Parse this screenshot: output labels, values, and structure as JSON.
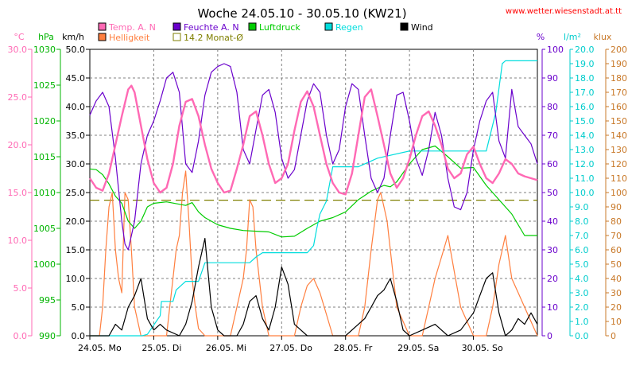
{
  "chart_data": {
    "type": "line",
    "title": "Woche 24.05.10 - 30.05.10 (KW21)",
    "source": "www.wetter.wiesenstadt.at.tt",
    "x_labels": [
      "24.05. Mo",
      "25.05. Di",
      "26.05. Mi",
      "27.05. Do",
      "28.05. Fr",
      "29.05. Sa",
      "30.05. So"
    ],
    "x_range_days": [
      0,
      7
    ],
    "axes": [
      {
        "unit": "°C",
        "color": "#ff69b4",
        "range": [
          0,
          30
        ],
        "ticks": [
          "0.0",
          "5.0",
          "10.0",
          "15.0",
          "20.0",
          "25.0",
          "30.0"
        ]
      },
      {
        "unit": "hPa",
        "color": "#00b400",
        "range": [
          990,
          1030
        ],
        "ticks": [
          "990",
          "995",
          "1000",
          "1005",
          "1010",
          "1015",
          "1020",
          "1025",
          "1030"
        ]
      },
      {
        "unit": "km/h",
        "color": "#000000",
        "range": [
          0,
          50
        ],
        "ticks": [
          "0.0",
          "5.0",
          "10.0",
          "15.0",
          "20.0",
          "25.0",
          "30.0",
          "35.0",
          "40.0",
          "45.0",
          "50.0"
        ]
      },
      {
        "unit": "%",
        "color": "#6a00cc",
        "range": [
          0,
          100
        ],
        "ticks": [
          "0",
          "10",
          "20",
          "30",
          "40",
          "50",
          "60",
          "70",
          "80",
          "90",
          "100"
        ]
      },
      {
        "unit": "l/m²",
        "color": "#00cccc",
        "range": [
          0,
          20
        ],
        "ticks": [
          "0.0",
          "1.0",
          "2.0",
          "3.0",
          "4.0",
          "5.0",
          "6.0",
          "7.0",
          "8.0",
          "9.0",
          "10.0",
          "11.0",
          "12.0",
          "13.0",
          "14.0",
          "15.0",
          "16.0",
          "17.0",
          "18.0",
          "19.0",
          "20.0"
        ]
      },
      {
        "unit": "klux",
        "color": "#c87828",
        "range": [
          0,
          200
        ],
        "ticks": [
          "0",
          "10",
          "20",
          "30",
          "40",
          "50",
          "60",
          "70",
          "80",
          "90",
          "100",
          "110",
          "120",
          "130",
          "140",
          "150",
          "160",
          "170",
          "180",
          "190",
          "200"
        ]
      }
    ],
    "legend": [
      {
        "label": "Temp. A. N",
        "color": "#ff69b4"
      },
      {
        "label": "Helligkeit",
        "color": "#ff7f3f"
      },
      {
        "label": "Feuchte A. N",
        "color": "#6a00cc"
      },
      {
        "label": "14.2 Monat-Ø",
        "color": "#7f7f00"
      },
      {
        "label": "Luftdruck",
        "color": "#00cc00"
      },
      {
        "label": "Regen",
        "color": "#00dddd"
      },
      {
        "label": "Wind",
        "color": "#000000"
      }
    ],
    "reference_line": {
      "value": 14.2,
      "axis": "°C"
    },
    "series": [
      {
        "name": "Temp. A. N",
        "axis": 0,
        "color": "#ff69b4",
        "x": [
          0,
          0.1,
          0.2,
          0.3,
          0.4,
          0.5,
          0.6,
          0.65,
          0.7,
          0.8,
          0.9,
          1.0,
          1.1,
          1.2,
          1.3,
          1.4,
          1.5,
          1.6,
          1.7,
          1.8,
          1.9,
          2.0,
          2.1,
          2.2,
          2.3,
          2.4,
          2.5,
          2.6,
          2.7,
          2.8,
          2.9,
          3.0,
          3.1,
          3.2,
          3.3,
          3.4,
          3.5,
          3.6,
          3.7,
          3.8,
          3.9,
          4.0,
          4.1,
          4.2,
          4.3,
          4.4,
          4.5,
          4.6,
          4.7,
          4.8,
          4.9,
          5.0,
          5.1,
          5.2,
          5.3,
          5.4,
          5.5,
          5.6,
          5.7,
          5.8,
          5.9,
          6.0,
          6.1,
          6.2,
          6.3,
          6.4,
          6.5,
          6.6,
          6.7,
          6.8,
          6.9,
          7.0
        ],
        "y": [
          16.5,
          15.5,
          15.2,
          17,
          20,
          23,
          25.8,
          26.2,
          25.5,
          22,
          18.5,
          16,
          15,
          15.5,
          18,
          22,
          24.5,
          24.8,
          23,
          20,
          17.5,
          16,
          15,
          15.2,
          17.5,
          20,
          23,
          23.5,
          21,
          18,
          16,
          16.5,
          18,
          21.5,
          24.5,
          25.6,
          24,
          21,
          18,
          16,
          15,
          14.8,
          17,
          21,
          25,
          25.8,
          23,
          20,
          17,
          15.5,
          16.5,
          18.5,
          21,
          23,
          23.5,
          22,
          20,
          17.5,
          16.5,
          17,
          19,
          19.8,
          18,
          16.5,
          16,
          17,
          18.5,
          18,
          17,
          16.7,
          16.5,
          16.3
        ]
      },
      {
        "name": "Feuchte A. N",
        "axis": 3,
        "color": "#6a00cc",
        "x": [
          0,
          0.1,
          0.2,
          0.3,
          0.4,
          0.5,
          0.55,
          0.6,
          0.7,
          0.8,
          0.9,
          1.0,
          1.1,
          1.2,
          1.3,
          1.4,
          1.5,
          1.6,
          1.7,
          1.8,
          1.9,
          2.0,
          2.1,
          2.2,
          2.3,
          2.4,
          2.5,
          2.6,
          2.7,
          2.8,
          2.9,
          3.0,
          3.1,
          3.2,
          3.3,
          3.4,
          3.5,
          3.6,
          3.7,
          3.8,
          3.9,
          4.0,
          4.1,
          4.2,
          4.3,
          4.4,
          4.5,
          4.6,
          4.7,
          4.8,
          4.9,
          5.0,
          5.1,
          5.2,
          5.3,
          5.4,
          5.5,
          5.6,
          5.7,
          5.8,
          5.9,
          6.0,
          6.1,
          6.2,
          6.3,
          6.4,
          6.5,
          6.6,
          6.7,
          6.8,
          6.9,
          7.0
        ],
        "y": [
          77,
          82,
          85,
          80,
          62,
          40,
          32,
          30,
          40,
          60,
          70,
          75,
          82,
          90,
          92,
          85,
          60,
          57,
          68,
          84,
          92,
          94,
          95,
          94,
          85,
          65,
          60,
          72,
          84,
          86,
          78,
          62,
          55,
          58,
          70,
          82,
          88,
          85,
          70,
          60,
          65,
          80,
          88,
          86,
          70,
          55,
          50,
          55,
          70,
          84,
          85,
          75,
          62,
          56,
          65,
          78,
          70,
          55,
          45,
          44,
          50,
          65,
          75,
          82,
          85,
          68,
          62,
          86,
          73,
          70,
          67,
          60
        ]
      },
      {
        "name": "Luftdruck",
        "axis": 1,
        "color": "#00cc00",
        "x": [
          0,
          0.1,
          0.2,
          0.3,
          0.4,
          0.5,
          0.6,
          0.7,
          0.8,
          0.9,
          1.0,
          1.2,
          1.5,
          1.6,
          1.7,
          1.8,
          2.0,
          2.2,
          2.4,
          2.6,
          2.8,
          3.0,
          3.2,
          3.4,
          3.6,
          3.8,
          4.0,
          4.2,
          4.4,
          4.6,
          4.7,
          4.8,
          5.0,
          5.2,
          5.4,
          5.6,
          5.8,
          6.0,
          6.2,
          6.4,
          6.6,
          6.8,
          7.0
        ],
        "y": [
          1013.3,
          1013.2,
          1012.5,
          1011.2,
          1009.5,
          1008.5,
          1006,
          1005,
          1006,
          1008,
          1008.5,
          1008.7,
          1008.2,
          1008.6,
          1007.3,
          1006.5,
          1005.5,
          1005,
          1004.7,
          1004.6,
          1004.5,
          1003.8,
          1003.9,
          1005,
          1006,
          1006.5,
          1007.3,
          1009,
          1010.2,
          1011,
          1010.8,
          1011.5,
          1014,
          1016,
          1016.5,
          1015,
          1013.4,
          1013.5,
          1011,
          1009,
          1007,
          1004,
          1004
        ]
      },
      {
        "name": "Regen",
        "axis": 4,
        "color": "#00dddd",
        "x": [
          0,
          0.82,
          0.9,
          1.1,
          1.12,
          1.2,
          1.3,
          1.35,
          1.5,
          1.6,
          1.7,
          1.8,
          1.9,
          2.0,
          2.3,
          2.4,
          2.5,
          2.6,
          2.7,
          2.8,
          3.0,
          3.2,
          3.4,
          3.5,
          3.55,
          3.6,
          3.7,
          3.8,
          4.0,
          4.2,
          4.5,
          5.0,
          5.5,
          6.0,
          6.2,
          6.35,
          6.45,
          6.5,
          6.55,
          7.0
        ],
        "y": [
          0,
          0,
          0.1,
          1.4,
          2.4,
          2.4,
          2.4,
          3.2,
          3.8,
          3.8,
          3.8,
          5.1,
          5.1,
          5.1,
          5.1,
          5.1,
          5.1,
          5.5,
          5.8,
          5.8,
          5.8,
          5.8,
          5.8,
          6.3,
          7.5,
          8.5,
          9.4,
          11.8,
          11.8,
          11.8,
          12.4,
          12.9,
          12.9,
          12.9,
          12.9,
          15.6,
          19.0,
          19.2,
          19.2,
          19.2
        ]
      },
      {
        "name": "Wind",
        "axis": 2,
        "color": "#000000",
        "x": [
          0,
          0.3,
          0.4,
          0.5,
          0.6,
          0.7,
          0.8,
          0.9,
          1.0,
          1.1,
          1.2,
          1.4,
          1.5,
          1.6,
          1.7,
          1.8,
          1.9,
          2.0,
          2.1,
          2.3,
          2.4,
          2.5,
          2.6,
          2.7,
          2.8,
          2.9,
          3.0,
          3.1,
          3.2,
          3.4,
          3.6,
          3.8,
          4.0,
          4.2,
          4.3,
          4.4,
          4.5,
          4.6,
          4.7,
          4.8,
          4.9,
          5.0,
          5.2,
          5.4,
          5.6,
          5.8,
          6.0,
          6.1,
          6.2,
          6.3,
          6.4,
          6.5,
          6.6,
          6.7,
          6.8,
          6.9,
          7.0
        ],
        "y": [
          0,
          0,
          2,
          1,
          5,
          7,
          10,
          3,
          1,
          2,
          1,
          0,
          2,
          6,
          12,
          17,
          5,
          1,
          0,
          0,
          2,
          6,
          7,
          3,
          1,
          5,
          12,
          9,
          2,
          0,
          0,
          0,
          0,
          2,
          3,
          5,
          7,
          8,
          10,
          6,
          1,
          0,
          1,
          2,
          0,
          1,
          4,
          7,
          10,
          11,
          4,
          0,
          1,
          3,
          2,
          4,
          2
        ]
      },
      {
        "name": "Helligkeit",
        "axis": 5,
        "color": "#ff7f3f",
        "x": [
          0,
          0.15,
          0.2,
          0.25,
          0.3,
          0.35,
          0.4,
          0.45,
          0.5,
          0.55,
          0.6,
          0.65,
          0.7,
          0.8,
          1.0,
          1.2,
          1.25,
          1.3,
          1.35,
          1.4,
          1.45,
          1.5,
          1.55,
          1.6,
          1.65,
          1.7,
          1.8,
          2.0,
          2.2,
          2.3,
          2.4,
          2.45,
          2.5,
          2.55,
          2.6,
          2.7,
          2.8,
          3.0,
          3.2,
          3.3,
          3.4,
          3.5,
          3.6,
          3.7,
          3.8,
          4.0,
          4.2,
          4.3,
          4.4,
          4.5,
          4.55,
          4.6,
          4.65,
          4.7,
          4.8,
          5.0,
          5.2,
          5.3,
          5.4,
          5.5,
          5.6,
          5.7,
          5.8,
          6.0,
          6.2,
          6.3,
          6.4,
          6.45,
          6.5,
          6.55,
          6.6,
          6.7,
          6.8,
          7.0
        ],
        "y": [
          0,
          0,
          20,
          60,
          90,
          100,
          60,
          40,
          30,
          100,
          95,
          60,
          20,
          0,
          0,
          0,
          20,
          40,
          60,
          70,
          100,
          115,
          80,
          40,
          20,
          5,
          0,
          0,
          0,
          20,
          40,
          60,
          95,
          90,
          60,
          20,
          0,
          0,
          0,
          20,
          35,
          40,
          30,
          15,
          0,
          0,
          0,
          20,
          60,
          95,
          100,
          90,
          80,
          60,
          20,
          0,
          0,
          20,
          40,
          55,
          70,
          45,
          20,
          0,
          0,
          20,
          50,
          60,
          70,
          55,
          40,
          30,
          20,
          0
        ]
      }
    ]
  }
}
